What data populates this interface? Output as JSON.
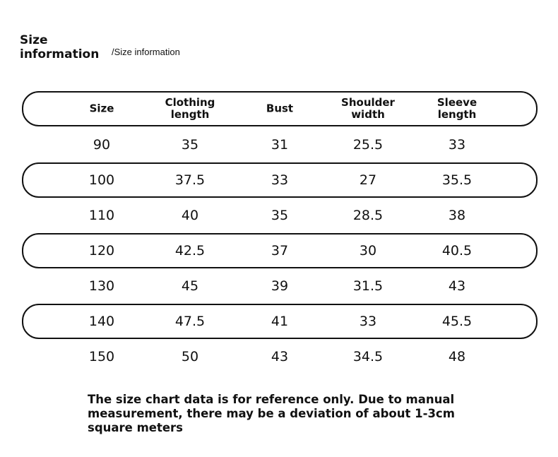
{
  "header": {
    "title": "Size information",
    "subtitle": "/Size information"
  },
  "table": {
    "columns": [
      "Size",
      "Clothing length",
      "Bust",
      "Shoulder width",
      "Sleeve length"
    ],
    "rows": [
      [
        90,
        35,
        31,
        25.5,
        33
      ],
      [
        100,
        37.5,
        33,
        27,
        35.5
      ],
      [
        110,
        40,
        35,
        28.5,
        38
      ],
      [
        120,
        42.5,
        37,
        30,
        40.5
      ],
      [
        130,
        45,
        39,
        31.5,
        43
      ],
      [
        140,
        47.5,
        41,
        33,
        45.5
      ],
      [
        150,
        50,
        43,
        34.5,
        48
      ]
    ]
  },
  "note": "The size chart data is for reference only. Due to manual measurement, there may be a deviation of about 1-3cm square meters"
}
